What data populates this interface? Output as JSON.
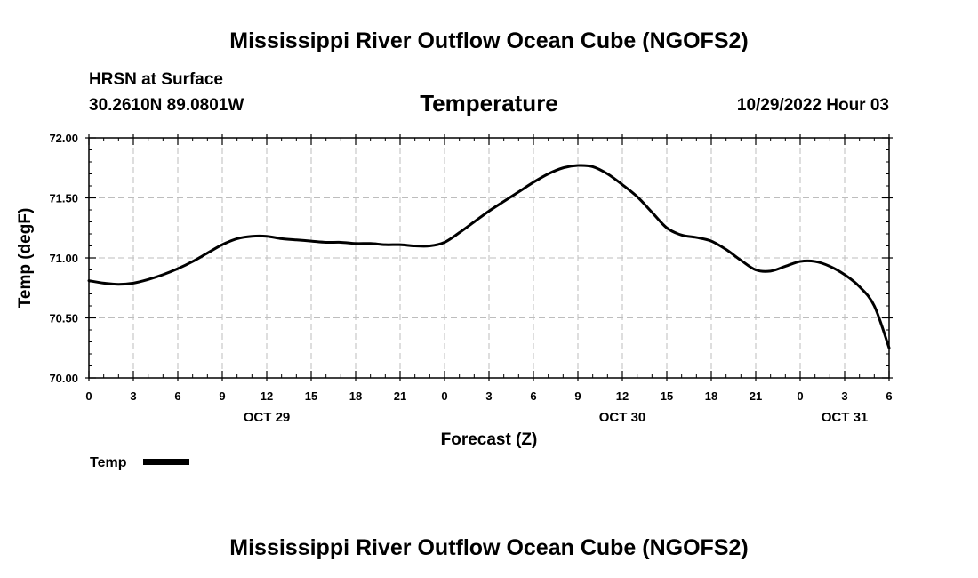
{
  "page": {
    "title_top": "Mississippi River Outflow Ocean Cube (NGOFS2)",
    "title_bottom": "Mississippi River Outflow Ocean Cube (NGOFS2)",
    "station": "HRSN at Surface",
    "coords": "30.2610N  89.0801W",
    "variable": "Temperature",
    "datetime": "10/29/2022 Hour 03"
  },
  "chart_data": {
    "type": "line",
    "title": "Temperature",
    "xlabel": "Forecast (Z)",
    "ylabel": "Temp (degF)",
    "xlim": [
      0,
      54
    ],
    "ylim": [
      70.0,
      72.0
    ],
    "grid": true,
    "y_ticks": [
      70.0,
      70.5,
      71.0,
      71.5,
      72.0
    ],
    "y_tick_labels": [
      "70.00",
      "70.50",
      "71.00",
      "71.50",
      "72.00"
    ],
    "x_ticks": [
      0,
      3,
      6,
      9,
      12,
      15,
      18,
      21,
      24,
      27,
      30,
      33,
      36,
      39,
      42,
      45,
      48,
      51,
      54
    ],
    "x_tick_labels": [
      "0",
      "3",
      "6",
      "9",
      "12",
      "15",
      "18",
      "21",
      "0",
      "3",
      "6",
      "9",
      "12",
      "15",
      "18",
      "21",
      "0",
      "3",
      "6"
    ],
    "day_labels": [
      {
        "x": 12,
        "label": "OCT 29"
      },
      {
        "x": 36,
        "label": "OCT 30"
      },
      {
        "x": 51,
        "label": "OCT 31"
      }
    ],
    "legend": {
      "position": "bottom-left",
      "label": "Temp"
    },
    "series": [
      {
        "name": "Temp",
        "color": "#000000",
        "x": [
          0,
          1,
          2,
          3,
          4,
          5,
          6,
          7,
          8,
          9,
          10,
          11,
          12,
          13,
          14,
          15,
          16,
          17,
          18,
          19,
          20,
          21,
          22,
          23,
          24,
          25,
          26,
          27,
          28,
          29,
          30,
          31,
          32,
          33,
          34,
          35,
          36,
          37,
          38,
          39,
          40,
          41,
          42,
          43,
          44,
          45,
          46,
          47,
          48,
          49,
          50,
          51,
          52,
          53,
          54
        ],
        "values": [
          70.81,
          70.79,
          70.78,
          70.79,
          70.82,
          70.86,
          70.91,
          70.97,
          71.04,
          71.11,
          71.16,
          71.18,
          71.18,
          71.16,
          71.15,
          71.14,
          71.13,
          71.13,
          71.12,
          71.12,
          71.11,
          71.11,
          71.1,
          71.1,
          71.13,
          71.21,
          71.3,
          71.39,
          71.47,
          71.55,
          71.63,
          71.7,
          71.75,
          71.77,
          71.76,
          71.7,
          71.61,
          71.51,
          71.38,
          71.25,
          71.19,
          71.17,
          71.14,
          71.07,
          70.98,
          70.9,
          70.89,
          70.93,
          70.97,
          70.97,
          70.93,
          70.86,
          70.76,
          70.6,
          70.25
        ]
      }
    ]
  }
}
